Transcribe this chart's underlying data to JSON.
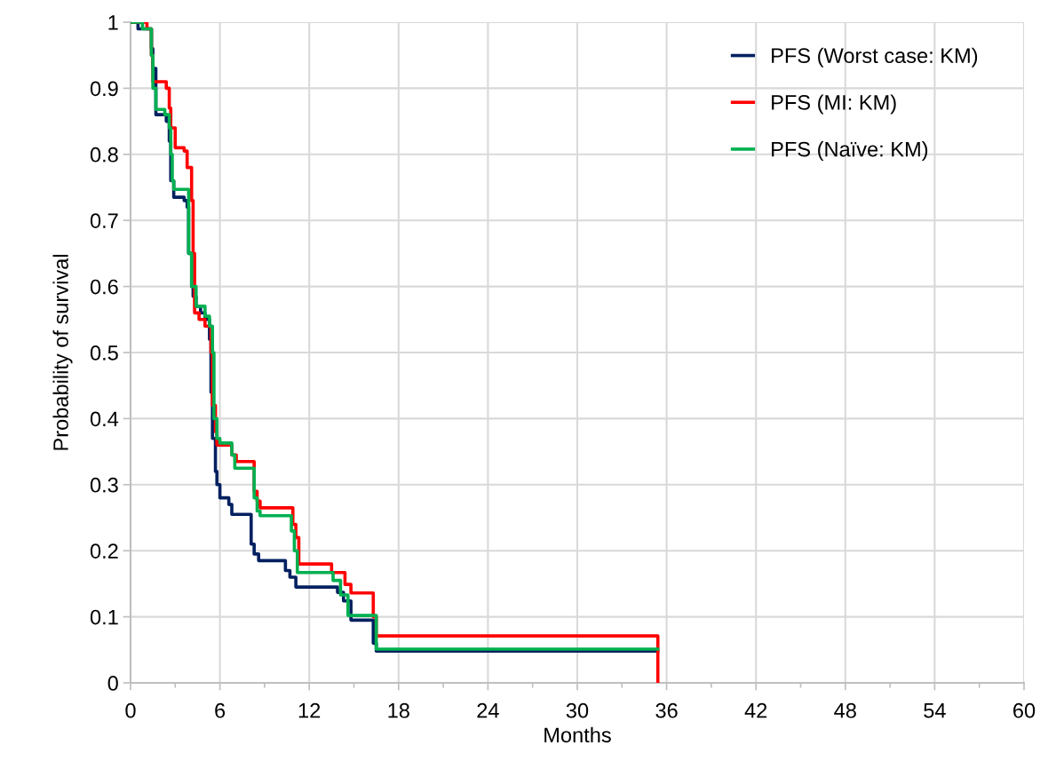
{
  "chart_data": {
    "type": "step",
    "xlabel": "Months",
    "ylabel": "Probability of survival",
    "xlim": [
      0,
      60
    ],
    "ylim": [
      0,
      1
    ],
    "xticks": [
      0,
      {
        "value": 3,
        "label": null
      },
      6,
      {
        "value": 9,
        "label": null
      },
      12,
      {
        "value": 15,
        "label": null
      },
      18,
      {
        "value": 21,
        "label": null
      },
      24,
      {
        "value": 27,
        "label": null
      },
      30,
      {
        "value": 33,
        "label": null
      },
      36,
      {
        "value": 39,
        "label": null
      },
      42,
      {
        "value": 45,
        "label": null
      },
      48,
      {
        "value": 51,
        "label": null
      },
      54,
      {
        "value": 57,
        "label": null
      },
      60
    ],
    "yticks": [
      0,
      0.1,
      0.2,
      0.3,
      0.4,
      0.5,
      0.6,
      0.7,
      0.8,
      0.9,
      1
    ],
    "grid": true,
    "legend": "top right",
    "marker": "none",
    "line_style": "solid",
    "series": [
      {
        "name": "PFS (Worst case: KM)",
        "color": "#002060",
        "x": [
          0,
          0.5,
          1.4,
          1.5,
          1.7,
          2.4,
          2.6,
          2.7,
          2.9,
          3.6,
          3.8,
          3.9,
          4.1,
          4.2,
          4.4,
          4.7,
          5.0,
          5.3,
          5.4,
          5.5,
          5.7,
          5.8,
          6.0,
          6.6,
          6.8,
          8.1,
          8.3,
          8.6,
          10.4,
          10.7,
          11.1,
          13.9,
          14.3,
          14.8,
          16.3,
          16.5,
          35.4
        ],
        "values": [
          1,
          0.99,
          0.96,
          0.93,
          0.86,
          0.85,
          0.82,
          0.76,
          0.735,
          0.73,
          0.72,
          0.65,
          0.6,
          0.585,
          0.57,
          0.56,
          0.55,
          0.52,
          0.44,
          0.37,
          0.32,
          0.3,
          0.28,
          0.27,
          0.255,
          0.21,
          0.195,
          0.185,
          0.17,
          0.16,
          0.145,
          0.137,
          0.124,
          0.095,
          0.06,
          0.048,
          0.048
        ]
      },
      {
        "name": "PFS (MI: KM)",
        "color": "#ff0000",
        "x": [
          0,
          1.1,
          1.4,
          1.5,
          2.4,
          2.6,
          2.7,
          3.0,
          3.6,
          3.8,
          4.1,
          4.2,
          4.3,
          4.6,
          5.0,
          5.4,
          5.5,
          5.7,
          5.8,
          6.6,
          6.8,
          7.1,
          8.1,
          8.3,
          8.5,
          8.7,
          10.7,
          10.9,
          11.1,
          11.3,
          13.5,
          14.4,
          14.8,
          16.3,
          16.5,
          35.4,
          35.41
        ],
        "values": [
          1,
          0.99,
          0.95,
          0.91,
          0.9,
          0.87,
          0.84,
          0.81,
          0.805,
          0.78,
          0.73,
          0.65,
          0.56,
          0.55,
          0.54,
          0.5,
          0.42,
          0.38,
          0.36,
          0.36,
          0.345,
          0.335,
          0.335,
          0.29,
          0.275,
          0.265,
          0.265,
          0.24,
          0.22,
          0.18,
          0.167,
          0.149,
          0.136,
          0.1,
          0.071,
          0.071,
          0
        ]
      },
      {
        "name": "PFS (Naïve: KM)",
        "color": "#00b050",
        "x": [
          0,
          0.8,
          1.4,
          1.5,
          1.7,
          2.3,
          2.6,
          2.7,
          2.8,
          2.9,
          3.9,
          4.1,
          4.4,
          5.0,
          5.3,
          5.5,
          5.6,
          5.8,
          6.0,
          6.6,
          6.8,
          7.0,
          8.1,
          8.3,
          8.5,
          8.7,
          10.6,
          10.8,
          11.0,
          11.2,
          13.6,
          14.1,
          14.6,
          16.3,
          16.5,
          35.4
        ],
        "values": [
          1,
          0.99,
          0.95,
          0.9,
          0.868,
          0.86,
          0.84,
          0.8,
          0.76,
          0.747,
          0.65,
          0.6,
          0.57,
          0.555,
          0.54,
          0.5,
          0.4,
          0.37,
          0.363,
          0.363,
          0.345,
          0.325,
          0.325,
          0.28,
          0.26,
          0.253,
          0.253,
          0.23,
          0.2,
          0.167,
          0.155,
          0.133,
          0.102,
          0.102,
          0.051,
          0.051
        ]
      }
    ]
  }
}
